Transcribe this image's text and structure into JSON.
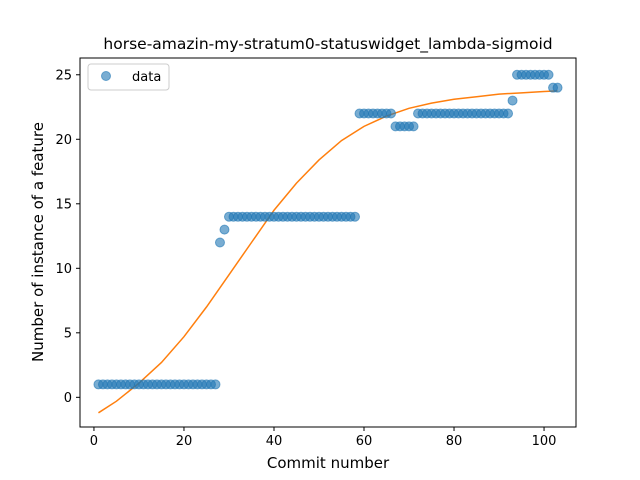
{
  "chart_data": {
    "type": "scatter",
    "title": "horse-amazin-my-stratum0-statuswidget_lambda-sigmoid",
    "xlabel": "Commit number",
    "ylabel": "Number of instance of a feature",
    "xlim": [
      -3.1,
      107.1
    ],
    "ylim": [
      -2.3,
      26.3
    ],
    "xticks": [
      0,
      20,
      40,
      60,
      80,
      100
    ],
    "yticks": [
      0,
      5,
      10,
      15,
      20,
      25
    ],
    "grid": false,
    "legend_position": "top-left",
    "colors": {
      "data": "#1f77b4",
      "fit": "#ff7f0e"
    },
    "series": [
      {
        "name": "data",
        "kind": "scatter",
        "x": [
          1,
          2,
          3,
          4,
          5,
          6,
          7,
          8,
          9,
          10,
          11,
          12,
          13,
          14,
          15,
          16,
          17,
          18,
          19,
          20,
          21,
          22,
          23,
          24,
          25,
          26,
          27,
          28,
          29,
          30,
          31,
          32,
          33,
          34,
          35,
          36,
          37,
          38,
          39,
          40,
          41,
          42,
          43,
          44,
          45,
          46,
          47,
          48,
          49,
          50,
          51,
          52,
          53,
          54,
          55,
          56,
          57,
          58,
          59,
          60,
          61,
          62,
          63,
          64,
          65,
          66,
          67,
          68,
          69,
          70,
          71,
          72,
          73,
          74,
          75,
          76,
          77,
          78,
          79,
          80,
          81,
          82,
          83,
          84,
          85,
          86,
          87,
          88,
          89,
          90,
          91,
          92,
          93,
          94,
          95,
          96,
          97,
          98,
          99,
          100,
          101,
          102,
          103
        ],
        "y": [
          1,
          1,
          1,
          1,
          1,
          1,
          1,
          1,
          1,
          1,
          1,
          1,
          1,
          1,
          1,
          1,
          1,
          1,
          1,
          1,
          1,
          1,
          1,
          1,
          1,
          1,
          1,
          12,
          13,
          14,
          14,
          14,
          14,
          14,
          14,
          14,
          14,
          14,
          14,
          14,
          14,
          14,
          14,
          14,
          14,
          14,
          14,
          14,
          14,
          14,
          14,
          14,
          14,
          14,
          14,
          14,
          14,
          14,
          22,
          22,
          22,
          22,
          22,
          22,
          22,
          22,
          21,
          21,
          21,
          21,
          21,
          22,
          22,
          22,
          22,
          22,
          22,
          22,
          22,
          22,
          22,
          22,
          22,
          22,
          22,
          22,
          22,
          22,
          22,
          22,
          22,
          22,
          23,
          25,
          25,
          25,
          25,
          25,
          25,
          25,
          25,
          24,
          24
        ]
      },
      {
        "name": "",
        "kind": "line",
        "x": [
          1,
          5,
          10,
          15,
          20,
          25,
          30,
          35,
          40,
          45,
          50,
          55,
          60,
          65,
          70,
          75,
          80,
          85,
          90,
          95,
          100,
          103
        ],
        "y": [
          -1.2,
          -0.3,
          1.1,
          2.7,
          4.7,
          7.0,
          9.5,
          12.0,
          14.5,
          16.6,
          18.4,
          19.9,
          21.0,
          21.8,
          22.4,
          22.8,
          23.1,
          23.3,
          23.5,
          23.6,
          23.7,
          23.75
        ]
      }
    ]
  }
}
